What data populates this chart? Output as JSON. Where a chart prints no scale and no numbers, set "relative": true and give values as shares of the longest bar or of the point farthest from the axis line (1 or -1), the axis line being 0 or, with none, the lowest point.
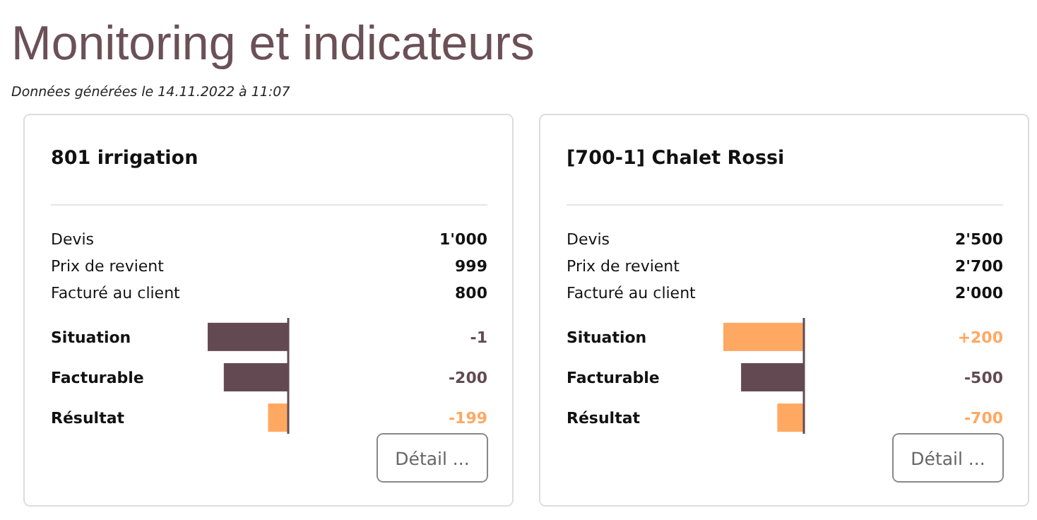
{
  "chart_data": [
    {
      "type": "other",
      "title": "Monitoring et indicateurs",
      "subtitle": "Données générées le 14.11.2022 à 11:07"
    },
    {
      "type": "bar",
      "orientation": "horizontal",
      "relative": true,
      "title": "801 irrigation",
      "categories": [
        "Situation",
        "Facturable",
        "Résultat"
      ],
      "values": [
        -1,
        -0.8,
        -0.25
      ],
      "colors": [
        "#634a52",
        "#634a52",
        "#ffa862"
      ],
      "annotations": [
        "Devis",
        "1'000",
        "Prix de revient",
        "999",
        "Facturé au client",
        "800",
        "-1",
        "-200",
        "-199",
        "Détail ..."
      ]
    },
    {
      "type": "bar",
      "orientation": "horizontal",
      "relative": true,
      "title": "[700-1] Chalet Rossi",
      "categories": [
        "Situation",
        "Facturable",
        "Résultat"
      ],
      "values": [
        -1,
        -0.78,
        -0.33
      ],
      "colors": [
        "#ffa862",
        "#634a52",
        "#ffa862"
      ],
      "annotations": [
        "Devis",
        "2'500",
        "Prix de revient",
        "2'700",
        "Facturé au client",
        "2'000",
        "+200",
        "-500",
        "-700",
        "Détail ..."
      ]
    }
  ]
}
